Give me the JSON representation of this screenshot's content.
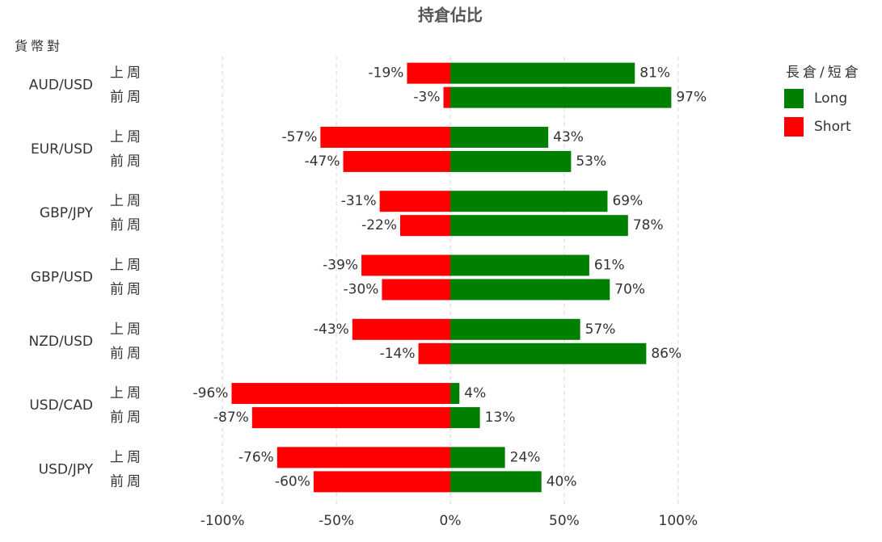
{
  "chart_data": {
    "type": "bar",
    "orientation": "horizontal",
    "title": "持倉佔比",
    "y_label": "貨幣對",
    "categories": [
      "AUD/USD",
      "EUR/USD",
      "GBP/JPY",
      "GBP/USD",
      "NZD/USD",
      "USD/CAD",
      "USD/JPY"
    ],
    "periods": [
      "上周",
      "前周"
    ],
    "legend_title": "長倉/短倉",
    "series": [
      {
        "name": "Long",
        "color": "#008000",
        "values": [
          [
            81,
            97
          ],
          [
            43,
            53
          ],
          [
            69,
            78
          ],
          [
            61,
            70
          ],
          [
            57,
            86
          ],
          [
            4,
            13
          ],
          [
            24,
            40
          ]
        ],
        "value_labels": [
          [
            "81%",
            "97%"
          ],
          [
            "43%",
            "53%"
          ],
          [
            "69%",
            "78%"
          ],
          [
            "61%",
            "70%"
          ],
          [
            "57%",
            "86%"
          ],
          [
            "4%",
            "13%"
          ],
          [
            "24%",
            "40%"
          ]
        ]
      },
      {
        "name": "Short",
        "color": "#ff0000",
        "values": [
          [
            -19,
            -3
          ],
          [
            -57,
            -47
          ],
          [
            -31,
            -22
          ],
          [
            -39,
            -30
          ],
          [
            -43,
            -14
          ],
          [
            -96,
            -87
          ],
          [
            -76,
            -60
          ]
        ],
        "value_labels": [
          [
            "-19%",
            "-3%"
          ],
          [
            "-57%",
            "-47%"
          ],
          [
            "-31%",
            "-22%"
          ],
          [
            "-39%",
            "-30%"
          ],
          [
            "-43%",
            "-14%"
          ],
          [
            "-96%",
            "-87%"
          ],
          [
            "-76%",
            "-60%"
          ]
        ]
      }
    ],
    "xlim": [
      -110,
      110
    ],
    "xticks": [
      {
        "value": -100,
        "label": "-100%"
      },
      {
        "value": -50,
        "label": "-50%"
      },
      {
        "value": 0,
        "label": "0%"
      },
      {
        "value": 50,
        "label": "50%"
      },
      {
        "value": 100,
        "label": "100%"
      }
    ],
    "grid": true,
    "legend": "right"
  }
}
